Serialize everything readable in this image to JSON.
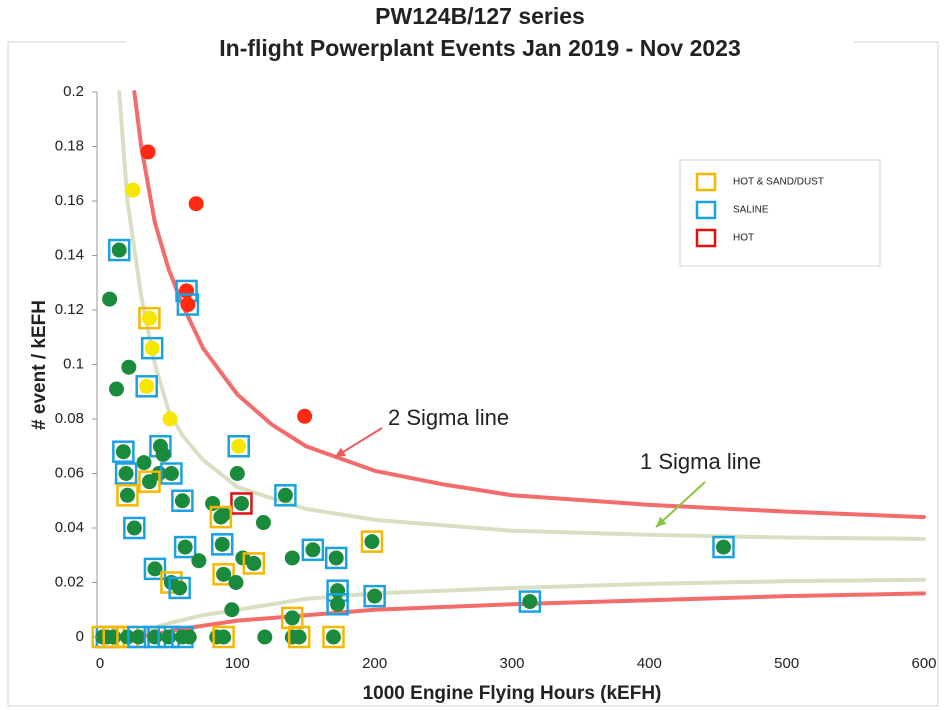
{
  "chart_data": {
    "type": "scatter",
    "title_lines": [
      "PW124B/127 series",
      "In-flight Powerplant Events Jan 2019 - Nov 2023"
    ],
    "x_label": "1000 Engine Flying Hours (kEFH)",
    "y_label": "# event / kEFH",
    "xlim": [
      0,
      600
    ],
    "xticks": [
      0,
      100,
      200,
      300,
      400,
      500,
      600
    ],
    "ylim": [
      0,
      0.2
    ],
    "yticks": [
      0,
      0.02,
      0.04,
      0.06,
      0.08,
      0.1,
      0.12,
      0.14,
      0.16,
      0.18,
      0.2
    ],
    "grid": false,
    "legend_position": "upper right",
    "legend": [
      {
        "name": "HOT & SAND/DUST",
        "color": "#f5b800"
      },
      {
        "name": "SALINE",
        "color": "#1ba1e2"
      },
      {
        "name": "HOT",
        "color": "#e01010"
      }
    ],
    "points": {
      "x": [
        5,
        2,
        10,
        20,
        28,
        40,
        50,
        60,
        65,
        85,
        90,
        120,
        140,
        145,
        170,
        24,
        35,
        70,
        14,
        7,
        63,
        64,
        36,
        38,
        21,
        12,
        34,
        51,
        149,
        17,
        44,
        101,
        46,
        32,
        19,
        43,
        52,
        36,
        100,
        20,
        60,
        103,
        82,
        135,
        90,
        88,
        119,
        25,
        62,
        89,
        104,
        112,
        155,
        172,
        198,
        454,
        72,
        40,
        52,
        58,
        90,
        99,
        140,
        140,
        173,
        173,
        200,
        313,
        96
      ],
      "values": [
        0,
        0,
        0,
        0,
        0,
        0,
        0,
        0,
        0,
        0,
        0,
        0,
        0,
        0,
        0,
        0.164,
        0.178,
        0.159,
        0.142,
        0.124,
        0.127,
        0.122,
        0.117,
        0.106,
        0.099,
        0.091,
        0.092,
        0.08,
        0.081,
        0.068,
        0.07,
        0.07,
        0.067,
        0.064,
        0.06,
        0.06,
        0.06,
        0.057,
        0.06,
        0.052,
        0.05,
        0.049,
        0.049,
        0.052,
        0.045,
        0.044,
        0.042,
        0.04,
        0.033,
        0.034,
        0.029,
        0.027,
        0.032,
        0.029,
        0.035,
        0.033,
        0.028,
        0.025,
        0.02,
        0.018,
        0.023,
        0.02,
        0.007,
        0.029,
        0.017,
        0.012,
        0.015,
        0.013,
        0.01
      ],
      "fill": [
        "#1a8a3c",
        "#1a8a3c",
        "#1a8a3c",
        "#1a8a3c",
        "#1a8a3c",
        "#1a8a3c",
        "#1a8a3c",
        "#1a8a3c",
        "#1a8a3c",
        "#1a8a3c",
        "#1a8a3c",
        "#1a8a3c",
        "#1a8a3c",
        "#1a8a3c",
        "#1a8a3c",
        "#f7e600",
        "#ff2a10",
        "#ff2a10",
        "#1a8a3c",
        "#1a8a3c",
        "#ff2a10",
        "#ff2a10",
        "#f7e600",
        "#f7e600",
        "#1a8a3c",
        "#1a8a3c",
        "#f7e600",
        "#f7e600",
        "#ff2a10",
        "#1a8a3c",
        "#1a8a3c",
        "#f7e600",
        "#1a8a3c",
        "#1a8a3c",
        "#1a8a3c",
        "#1a8a3c",
        "#1a8a3c",
        "#1a8a3c",
        "#1a8a3c",
        "#1a8a3c",
        "#1a8a3c",
        "#1a8a3c",
        "#1a8a3c",
        "#1a8a3c",
        "#1a8a3c",
        "#1a8a3c",
        "#1a8a3c",
        "#1a8a3c",
        "#1a8a3c",
        "#1a8a3c",
        "#1a8a3c",
        "#1a8a3c",
        "#1a8a3c",
        "#1a8a3c",
        "#1a8a3c",
        "#1a8a3c",
        "#1a8a3c",
        "#1a8a3c",
        "#1a8a3c",
        "#1a8a3c",
        "#1a8a3c",
        "#1a8a3c",
        "#1a8a3c",
        "#1a8a3c",
        "#1a8a3c",
        "#1a8a3c",
        "#1a8a3c",
        "#1a8a3c",
        "#1a8a3c"
      ],
      "box": [
        1,
        0,
        0,
        0,
        1,
        1,
        1,
        1,
        null,
        null,
        0,
        null,
        null,
        0,
        0,
        null,
        null,
        null,
        1,
        null,
        1,
        1,
        0,
        1,
        null,
        null,
        1,
        null,
        null,
        1,
        1,
        1,
        null,
        null,
        1,
        null,
        1,
        0,
        null,
        0,
        1,
        2,
        null,
        1,
        null,
        0,
        null,
        1,
        1,
        1,
        null,
        0,
        1,
        1,
        0,
        1,
        null,
        1,
        0,
        1,
        0,
        null,
        0,
        null,
        1,
        1,
        1,
        1,
        null
      ]
    },
    "lines": [
      {
        "color": "#f36b6b",
        "x": [
          25,
          30,
          40,
          50,
          60,
          75,
          100,
          125,
          150,
          200,
          250,
          300,
          400,
          500,
          600
        ],
        "values": [
          0.2,
          0.18,
          0.152,
          0.135,
          0.122,
          0.106,
          0.089,
          0.078,
          0.07,
          0.061,
          0.056,
          0.052,
          0.0485,
          0.046,
          0.044
        ]
      },
      {
        "color": "#d9dfc2",
        "x": [
          14,
          20,
          30,
          40,
          50,
          60,
          75,
          100,
          150,
          200,
          300,
          400,
          500,
          600
        ],
        "values": [
          0.2,
          0.16,
          0.125,
          0.1,
          0.083,
          0.074,
          0.065,
          0.055,
          0.047,
          0.043,
          0.039,
          0.0375,
          0.0365,
          0.036
        ]
      },
      {
        "color": "#d9dfc2",
        "x": [
          20,
          30,
          50,
          75,
          100,
          150,
          200,
          300,
          400,
          500,
          600
        ],
        "values": [
          0,
          0.002,
          0.005,
          0.008,
          0.01,
          0.014,
          0.016,
          0.018,
          0.0195,
          0.0205,
          0.021
        ]
      },
      {
        "color": "#f36b6b",
        "x": [
          25,
          40,
          60,
          100,
          150,
          200,
          300,
          400,
          500,
          600
        ],
        "values": [
          0,
          0.001,
          0.003,
          0.006,
          0.008,
          0.01,
          0.012,
          0.0135,
          0.015,
          0.016
        ]
      }
    ],
    "annotations": [
      {
        "text": "2 Sigma line",
        "color": "#f05a5a"
      },
      {
        "text": "1 Sigma line",
        "color": "#8cc63f"
      }
    ]
  }
}
